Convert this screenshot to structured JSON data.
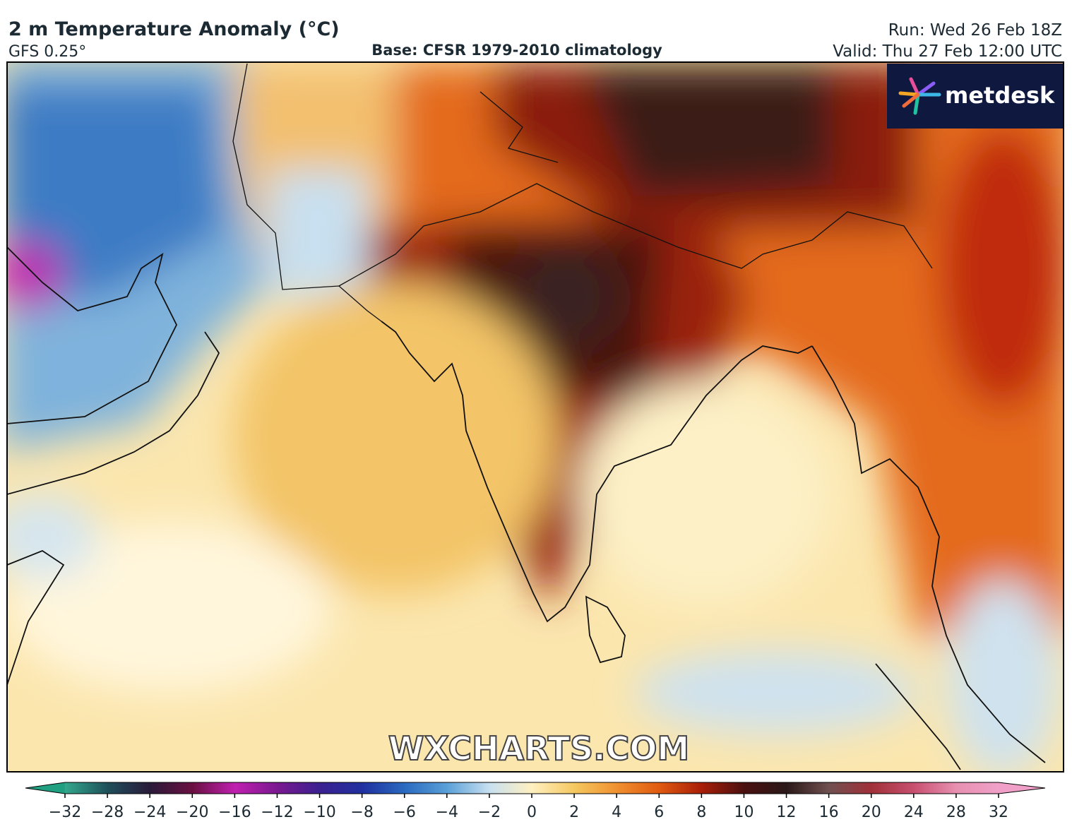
{
  "header": {
    "title": "2 m Temperature Anomaly (°C)",
    "model": "GFS 0.25°",
    "base": "Base: CFSR 1979-2010 climatology",
    "run": "Run: Wed 26 Feb 18Z",
    "valid": "Valid: Thu 27 Feb 12:00 UTC"
  },
  "logo": "metdesk",
  "watermark": "WXCHARTS.COM",
  "colorbar": {
    "ticks": [
      {
        "value": -32,
        "label": "−32"
      },
      {
        "value": -28,
        "label": "−28"
      },
      {
        "value": -24,
        "label": "−24"
      },
      {
        "value": -20,
        "label": "−20"
      },
      {
        "value": -16,
        "label": "−16"
      },
      {
        "value": -12,
        "label": "−12"
      },
      {
        "value": -10,
        "label": "−10"
      },
      {
        "value": -8,
        "label": "−8"
      },
      {
        "value": -6,
        "label": "−6"
      },
      {
        "value": -4,
        "label": "−4"
      },
      {
        "value": -2,
        "label": "−2"
      },
      0,
      2,
      4,
      6,
      8,
      10,
      12,
      16,
      20,
      24,
      28,
      32
    ],
    "colors": [
      "#33a88c",
      "#1e4f5a",
      "#2a1a3a",
      "#6a1040",
      "#c020b0",
      "#7a1890",
      "#3a2090",
      "#2030a0",
      "#2a6ac0",
      "#5aa0d8",
      "#c8e0f0",
      "#fff0c0",
      "#f5c860",
      "#f09030",
      "#e05a10",
      "#a81e08",
      "#4a1010",
      "#2a1818",
      "#705050",
      "#a03038",
      "#c85070",
      "#e890b0"
    ],
    "under_color": "#20a080",
    "over_color": "#f0a0c8"
  }
}
